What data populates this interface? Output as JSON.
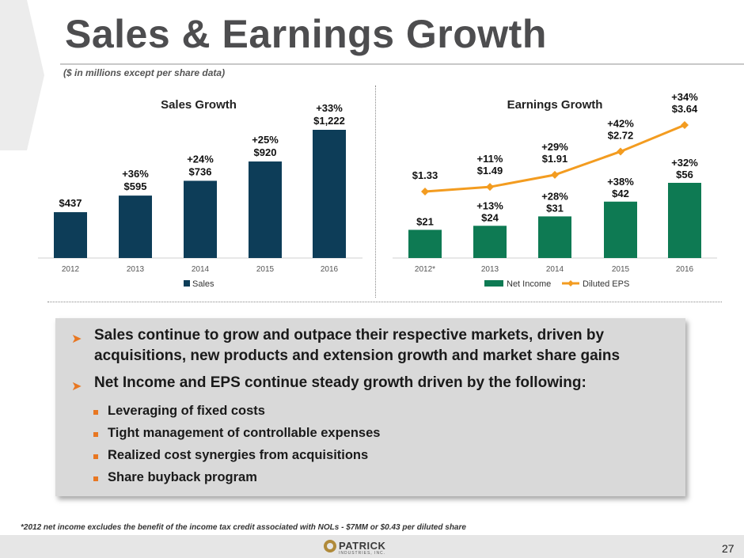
{
  "title": "Sales & Earnings Growth",
  "subtitle": "($ in millions except per share data)",
  "colors": {
    "sales_bar": "#0d3d58",
    "net_income_bar": "#0e7a53",
    "eps_line": "#f39c20",
    "accent": "#e87722"
  },
  "chart_data": [
    {
      "type": "bar",
      "title": "Sales Growth",
      "categories": [
        "2012",
        "2013",
        "2014",
        "2015",
        "2016"
      ],
      "series": [
        {
          "name": "Sales",
          "values": [
            437,
            595,
            736,
            920,
            1222
          ],
          "value_labels": [
            "$437",
            "$595",
            "$736",
            "$920",
            "$1,222"
          ],
          "growth_labels": [
            "",
            "+36%",
            "+24%",
            "+25%",
            "+33%"
          ]
        }
      ],
      "ylim": [
        0,
        1300
      ],
      "legend": "bottom",
      "grid": false
    },
    {
      "type": "bar",
      "title": "Earnings Growth",
      "categories": [
        "2012*",
        "2013",
        "2014",
        "2015",
        "2016"
      ],
      "series": [
        {
          "name": "Net Income",
          "chart": "bar",
          "values": [
            21,
            24,
            31,
            42,
            56
          ],
          "value_labels": [
            "$21",
            "$24",
            "$31",
            "$42",
            "$56"
          ],
          "growth_labels": [
            "",
            "+13%",
            "+28%",
            "+38%",
            "+32%"
          ]
        },
        {
          "name": "Diluted EPS",
          "chart": "line",
          "values": [
            1.33,
            1.49,
            1.91,
            2.72,
            3.64
          ],
          "value_labels": [
            "$1.33",
            "$1.49",
            "$1.91",
            "$2.72",
            "$3.64"
          ],
          "growth_labels": [
            "",
            "+11%",
            "+29%",
            "+42%",
            "+34%"
          ]
        }
      ],
      "legend": "bottom",
      "grid": false
    }
  ],
  "bullets": {
    "main_1": [
      "Sales continue to grow and outpace their respective markets, driven by",
      "acquisitions, new products and extension growth and market share gains"
    ],
    "main_2": "Net Income and EPS continue steady growth driven by the following:",
    "subs": [
      "Leveraging of fixed costs",
      "Tight management of controllable expenses",
      "Realized cost synergies from acquisitions",
      "Share buyback program"
    ]
  },
  "footnote": "*2012 net income excludes the benefit of the income tax credit associated with NOLs - $7MM or $0.43 per diluted share",
  "logo": {
    "name": "PATRICK",
    "tagline": "INDUSTRIES, INC."
  },
  "page_number": "27"
}
